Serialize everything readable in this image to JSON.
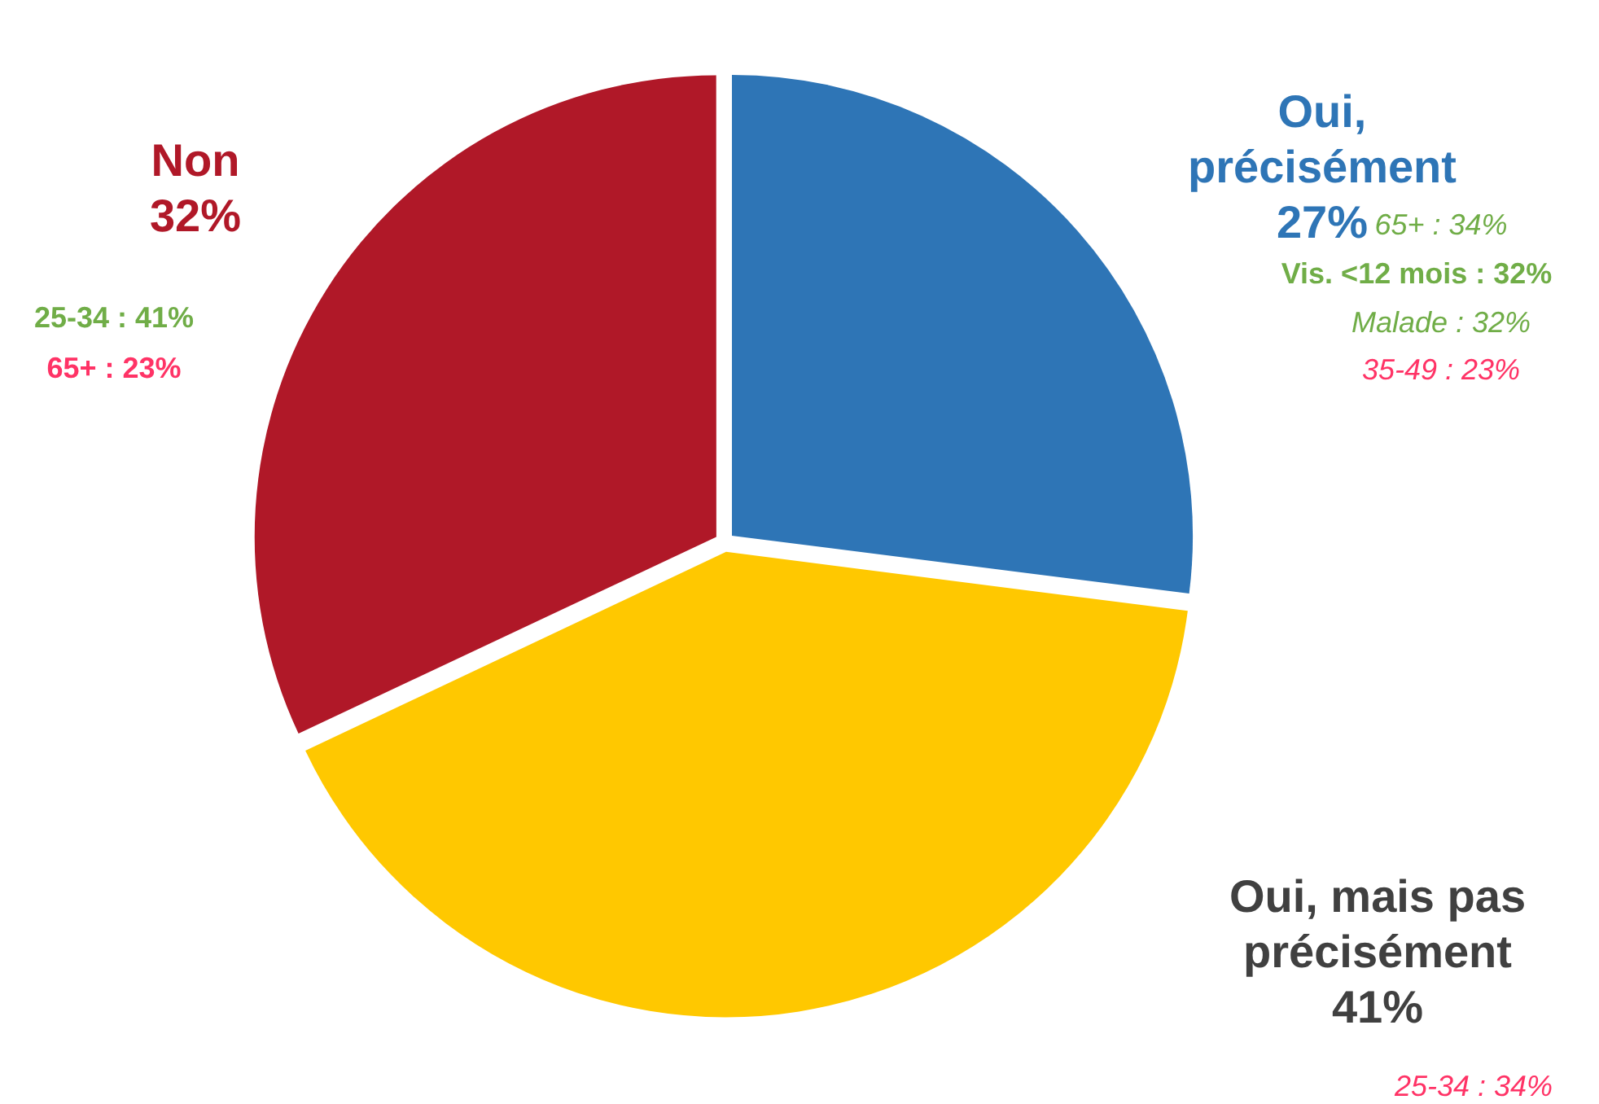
{
  "chart_data": {
    "type": "pie",
    "categories": [
      "Oui, précisément",
      "Oui, mais pas précisément",
      "Non"
    ],
    "values": [
      27,
      41,
      32
    ],
    "colors": [
      "#2e75b6",
      "#ffc800",
      "#b01828"
    ],
    "value_labels": [
      "27%",
      "41%",
      "32%"
    ],
    "legend": false,
    "annotations": [
      "65+ : 34%",
      "Vis. <12 mois : 32%",
      "Malade : 32%",
      "35-49 : 23%",
      "25-34 : 41%",
      "65+ : 23%",
      "25-34 : 34%"
    ]
  }
}
